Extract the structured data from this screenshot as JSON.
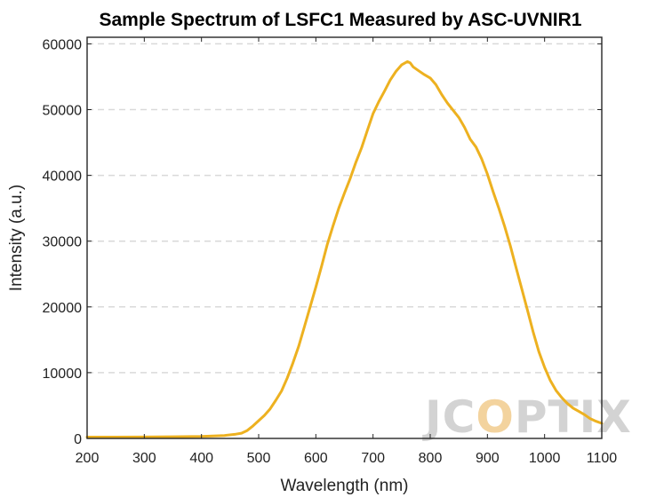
{
  "chart_data": {
    "type": "line",
    "title": "Sample Spectrum of LSFC1 Measured by ASC-UVNIR1",
    "xlabel": "Wavelength (nm)",
    "ylabel": "Intensity (a.u.)",
    "xlim": [
      200,
      1100
    ],
    "ylim": [
      0,
      61000
    ],
    "xticks": [
      200,
      300,
      400,
      500,
      600,
      700,
      800,
      900,
      1000,
      1100
    ],
    "yticks": [
      0,
      10000,
      20000,
      30000,
      40000,
      50000,
      60000
    ],
    "grid": "horizontal-dashed",
    "legend": "none",
    "series": [
      {
        "color": "#EDB120",
        "x": [
          200,
          250,
          300,
          350,
          400,
          440,
          460,
          470,
          480,
          490,
          500,
          510,
          520,
          530,
          540,
          550,
          560,
          570,
          580,
          590,
          600,
          610,
          620,
          630,
          640,
          650,
          660,
          670,
          680,
          690,
          700,
          710,
          720,
          730,
          740,
          750,
          760,
          765,
          770,
          780,
          790,
          800,
          810,
          820,
          830,
          840,
          850,
          860,
          870,
          880,
          890,
          900,
          910,
          920,
          930,
          940,
          950,
          960,
          970,
          980,
          990,
          1000,
          1010,
          1020,
          1030,
          1040,
          1050,
          1060,
          1070,
          1080,
          1090,
          1100
        ],
        "y": [
          200,
          200,
          220,
          250,
          300,
          450,
          650,
          800,
          1200,
          1900,
          2700,
          3500,
          4500,
          5800,
          7200,
          9200,
          11500,
          14000,
          17000,
          20000,
          23000,
          26200,
          29500,
          32300,
          35000,
          37300,
          39500,
          42000,
          44200,
          46800,
          49400,
          51200,
          52800,
          54500,
          55800,
          56800,
          57300,
          57100,
          56500,
          55900,
          55300,
          54800,
          53800,
          52300,
          51000,
          49900,
          48800,
          47300,
          45500,
          44300,
          42500,
          40200,
          37500,
          35000,
          32300,
          29300,
          26000,
          22800,
          19500,
          16200,
          13200,
          10800,
          8800,
          7300,
          6200,
          5300,
          4600,
          4100,
          3600,
          3000,
          2600,
          2300
        ]
      }
    ]
  },
  "watermark": {
    "letters": [
      "J",
      "C",
      "O",
      "P",
      "T",
      "I",
      "X"
    ],
    "colors": [
      "#d3d3d3",
      "#d3d3d3",
      "#f3d39e",
      "#d3d3d3",
      "#d3d3d3",
      "#d3d3d3",
      "#d3d3d3"
    ]
  }
}
